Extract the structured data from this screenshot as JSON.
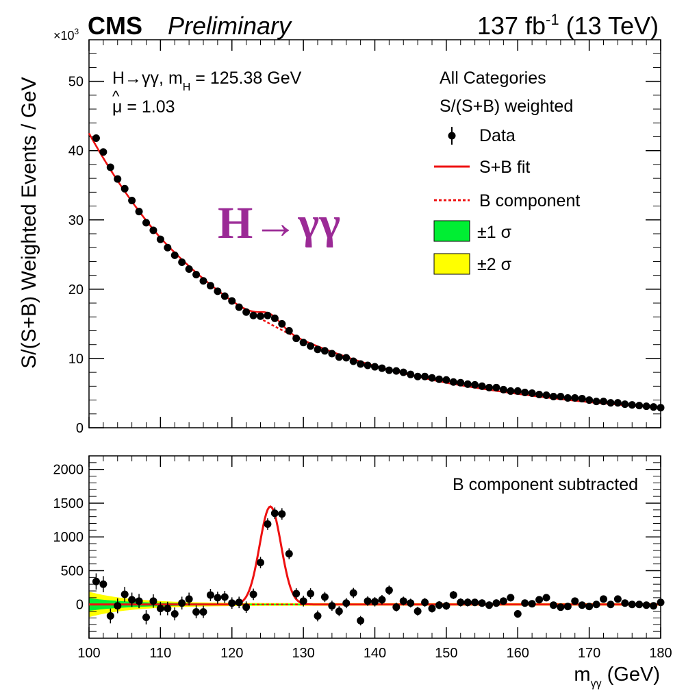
{
  "header": {
    "cms": "CMS",
    "preliminary": "Preliminary",
    "lumi_value": "137 fb",
    "lumi_exp": "-1",
    "energy": " (13 TeV)"
  },
  "annotations": {
    "process_pre": "H→γγ, m",
    "process_sub": "H",
    "process_post": " = 125.38 GeV",
    "mu_text": "μ = 1.03",
    "mu_hat": "^",
    "big_label": "H→γγ",
    "categories_line1": "All Categories",
    "categories_line2": "S/(S+B) weighted",
    "lower_label": "B component subtracted"
  },
  "legend": {
    "data": "Data",
    "sb_fit": "S+B fit",
    "b_component": "B component",
    "one_sigma": "±1 σ",
    "two_sigma": "±2 σ"
  },
  "colors": {
    "fit": "#ee1111",
    "one_sigma": "#00ee33",
    "two_sigma": "#ffff00",
    "data": "#000000",
    "big_label": "#9b2a96"
  },
  "chart_data": [
    {
      "type": "scatter",
      "panel": "upper",
      "ylabel": "S/(S+B) Weighted Events / GeV",
      "y_multiplier": "×10",
      "y_multiplier_exp": "3",
      "xlim": [
        100,
        180
      ],
      "ylim": [
        0,
        56
      ],
      "yticks": [
        0,
        10,
        20,
        30,
        40,
        50
      ],
      "xticks": [
        100,
        110,
        120,
        130,
        140,
        150,
        160,
        170,
        180
      ],
      "series": [
        {
          "name": "Data",
          "x": [
            101,
            102,
            103,
            104,
            105,
            106,
            107,
            108,
            109,
            110,
            111,
            112,
            113,
            114,
            115,
            116,
            117,
            118,
            119,
            120,
            121,
            122,
            123,
            124,
            125,
            126,
            127,
            128,
            129,
            130,
            131,
            132,
            133,
            134,
            135,
            136,
            137,
            138,
            139,
            140,
            141,
            142,
            143,
            144,
            145,
            146,
            147,
            148,
            149,
            150,
            151,
            152,
            153,
            154,
            155,
            156,
            157,
            158,
            159,
            160,
            161,
            162,
            163,
            164,
            165,
            166,
            167,
            168,
            169,
            170,
            171,
            172,
            173,
            174,
            175,
            176,
            177,
            178,
            179,
            180
          ],
          "y": [
            41.8,
            39.8,
            37.6,
            35.9,
            34.5,
            32.8,
            31.2,
            29.6,
            28.5,
            27.2,
            26.0,
            24.9,
            23.9,
            22.9,
            22.1,
            21.2,
            20.5,
            19.7,
            19.0,
            18.3,
            17.4,
            16.7,
            16.2,
            16.1,
            16.2,
            15.8,
            15.0,
            14.0,
            12.9,
            12.3,
            11.8,
            11.3,
            11.1,
            10.7,
            10.2,
            10.1,
            9.6,
            9.2,
            9.0,
            8.8,
            8.6,
            8.3,
            8.2,
            8.0,
            7.7,
            7.4,
            7.4,
            7.2,
            7.0,
            6.9,
            6.6,
            6.5,
            6.3,
            6.2,
            6.0,
            5.8,
            5.8,
            5.5,
            5.3,
            5.3,
            5.1,
            5.0,
            4.8,
            4.7,
            4.5,
            4.5,
            4.3,
            4.3,
            4.2,
            4.0,
            3.8,
            3.8,
            3.6,
            3.6,
            3.4,
            3.3,
            3.2,
            3.1,
            3.0,
            2.9
          ]
        },
        {
          "name": "S+B fit",
          "amplitude": 1.45,
          "mean": 125.38,
          "sigma": 1.5
        },
        {
          "name": "B component",
          "x": [
            100,
            110,
            120,
            130,
            140,
            150,
            160,
            170,
            180
          ],
          "y": [
            42.5,
            27.4,
            18.3,
            12.6,
            8.9,
            6.5,
            4.9,
            3.7,
            2.9
          ]
        }
      ]
    },
    {
      "type": "scatter",
      "panel": "lower",
      "xlabel": "m",
      "xlabel_sub": "γγ",
      "xlabel_unit": " (GeV)",
      "xlim": [
        100,
        180
      ],
      "ylim": [
        -500,
        2200
      ],
      "yticks": [
        0,
        500,
        1000,
        1500,
        2000
      ],
      "xticks": [
        100,
        110,
        120,
        130,
        140,
        150,
        160,
        170,
        180
      ],
      "series": [
        {
          "name": "Data",
          "x": [
            101,
            102,
            103,
            104,
            105,
            106,
            107,
            108,
            109,
            110,
            111,
            112,
            113,
            114,
            115,
            116,
            117,
            118,
            119,
            120,
            121,
            122,
            123,
            124,
            125,
            126,
            127,
            128,
            129,
            130,
            131,
            132,
            133,
            134,
            135,
            136,
            137,
            138,
            139,
            140,
            141,
            142,
            143,
            144,
            145,
            146,
            147,
            148,
            149,
            150,
            151,
            152,
            153,
            154,
            155,
            156,
            157,
            158,
            159,
            160,
            161,
            162,
            163,
            164,
            165,
            166,
            167,
            168,
            169,
            170,
            171,
            172,
            173,
            174,
            175,
            176,
            177,
            178,
            179,
            180
          ],
          "y": [
            340,
            300,
            -170,
            -20,
            150,
            70,
            50,
            -190,
            50,
            -60,
            -60,
            -140,
            20,
            80,
            -110,
            -110,
            140,
            100,
            110,
            20,
            30,
            -40,
            150,
            620,
            1190,
            1350,
            1340,
            750,
            160,
            50,
            160,
            -170,
            110,
            -20,
            -100,
            20,
            170,
            -240,
            50,
            40,
            70,
            210,
            -40,
            50,
            20,
            -100,
            30,
            -60,
            -10,
            -20,
            140,
            30,
            30,
            30,
            20,
            -10,
            20,
            50,
            100,
            -140,
            20,
            10,
            70,
            100,
            -10,
            -40,
            -30,
            50,
            -10,
            -30,
            0,
            80,
            0,
            80,
            20,
            0,
            0,
            -10,
            -20,
            30
          ],
          "err": [
            120,
            120,
            110,
            110,
            110,
            105,
            105,
            105,
            100,
            100,
            100,
            95,
            95,
            95,
            95,
            90,
            90,
            90,
            90,
            85,
            85,
            85,
            85,
            85,
            85,
            85,
            85,
            80,
            80,
            80,
            80,
            80,
            75,
            75,
            75,
            75,
            75,
            70,
            70,
            70,
            70,
            70,
            65,
            65,
            65,
            65,
            65,
            60,
            60,
            60,
            60,
            60,
            60,
            55,
            55,
            55,
            55,
            55,
            55,
            50,
            50,
            50,
            50,
            50,
            50,
            50,
            45,
            45,
            45,
            45,
            45,
            45,
            45,
            45,
            40,
            40,
            40,
            40,
            40,
            40
          ]
        },
        {
          "name": "S+B fit",
          "amplitude": 1450,
          "mean": 125.38,
          "sigma": 1.5
        },
        {
          "name": "B component",
          "x": [
            100,
            180
          ],
          "y": [
            0,
            0
          ]
        }
      ]
    }
  ]
}
